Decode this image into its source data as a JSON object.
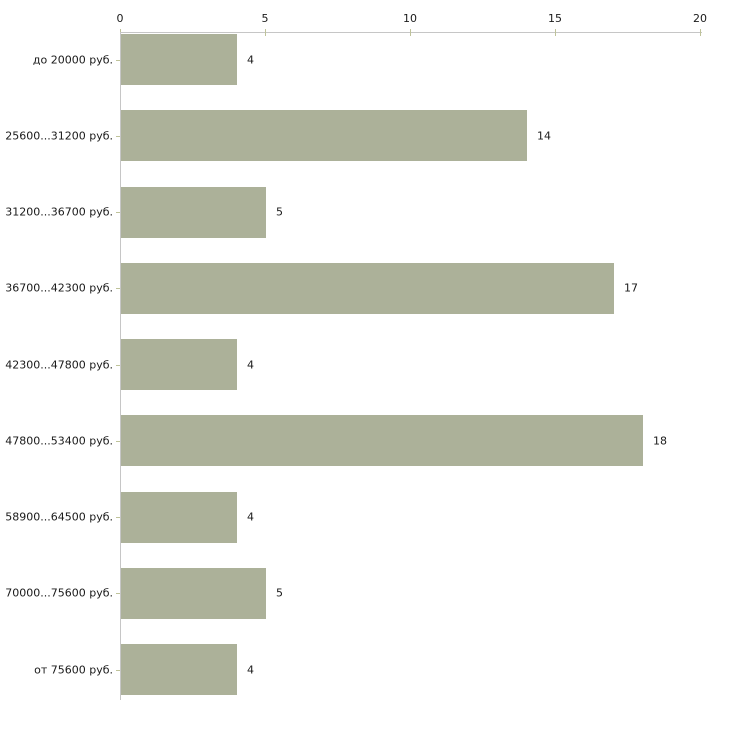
{
  "chart_data": {
    "type": "bar",
    "orientation": "horizontal",
    "title": "",
    "xlabel": "",
    "ylabel": "",
    "categories": [
      "до 20000 руб.",
      "25600...31200 руб.",
      "31200...36700 руб.",
      "36700...42300 руб.",
      "42300...47800 руб.",
      "47800...53400 руб.",
      "58900...64500 руб.",
      "70000...75600 руб.",
      "от 75600 руб."
    ],
    "values": [
      4,
      14,
      5,
      17,
      4,
      18,
      4,
      5,
      4
    ],
    "value_labels": [
      "4",
      "14",
      "5",
      "17",
      "4",
      "18",
      "4",
      "5",
      "4"
    ],
    "xlim": [
      0,
      20
    ],
    "x_ticks": [
      0,
      5,
      10,
      15,
      20
    ],
    "x_tick_labels": [
      "0",
      "5",
      "10",
      "15",
      "20"
    ],
    "x_axis_position": "top",
    "grid": false,
    "legend": null,
    "colors": {
      "bar_fill": "#acb199",
      "axis_line": "#c6c6c6",
      "tick_mark": "#bfc39a",
      "text": "#1a1a1a",
      "background": "#ffffff"
    }
  }
}
